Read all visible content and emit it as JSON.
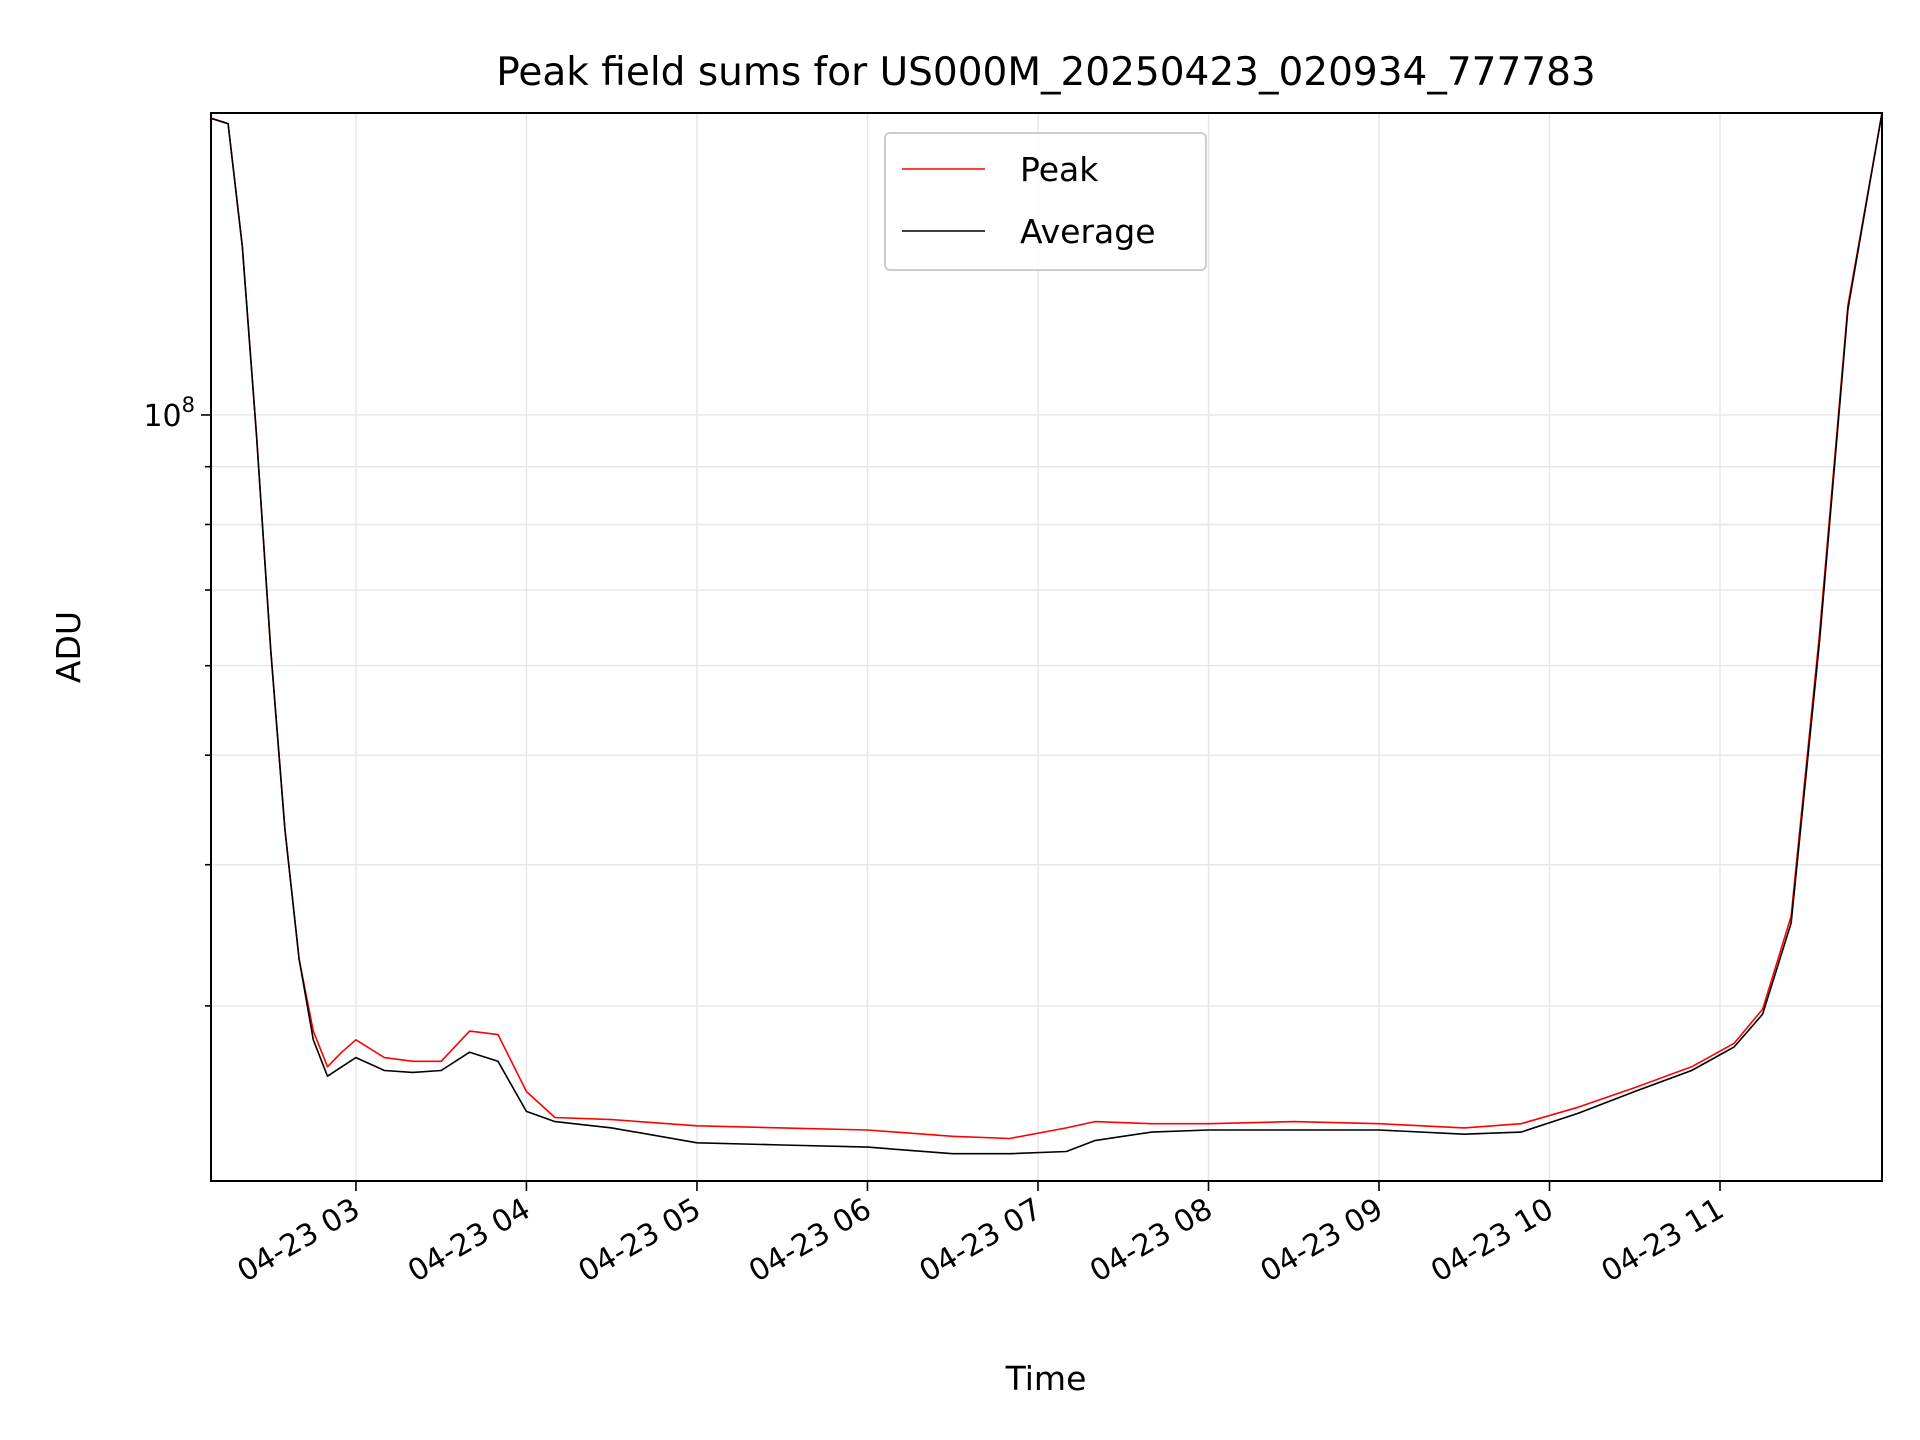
{
  "chart_data": {
    "type": "line",
    "title": "Peak field sums for US000M_20250423_020934_777783",
    "xlabel": "Time",
    "ylabel": "ADU",
    "xlim": [
      "04-23 02:09",
      "04-23 11:57"
    ],
    "ylim": [
      21000000,
      185000000
    ],
    "yscale": "log",
    "grid": true,
    "grid_minor": true,
    "legend_position": "top-center",
    "x_tick_labels": [
      "04-23 03",
      "04-23 04",
      "04-23 05",
      "04-23 06",
      "04-23 07",
      "04-23 08",
      "04-23 09",
      "04-23 10",
      "04-23 11"
    ],
    "x_tick_times": [
      "04-23 03:00",
      "04-23 04:00",
      "04-23 05:00",
      "04-23 06:00",
      "04-23 07:00",
      "04-23 08:00",
      "04-23 09:00",
      "04-23 10:00",
      "04-23 11:00"
    ],
    "y_tick_label": {
      "base": "10",
      "exponent": "8",
      "value": 100000000
    },
    "y_minor_ticks": [
      30000000,
      40000000,
      50000000,
      60000000,
      70000000,
      80000000,
      90000000
    ],
    "series": [
      {
        "name": "Peak",
        "color": "#ff0000",
        "x": [
          "04-23 02:09",
          "04-23 02:15",
          "04-23 02:20",
          "04-23 02:25",
          "04-23 02:30",
          "04-23 02:35",
          "04-23 02:40",
          "04-23 02:45",
          "04-23 02:50",
          "04-23 02:55",
          "04-23 03:00",
          "04-23 03:10",
          "04-23 03:20",
          "04-23 03:30",
          "04-23 03:40",
          "04-23 03:50",
          "04-23 04:00",
          "04-23 04:10",
          "04-23 04:30",
          "04-23 05:00",
          "04-23 05:30",
          "04-23 06:00",
          "04-23 06:30",
          "04-23 06:50",
          "04-23 07:10",
          "04-23 07:20",
          "04-23 07:40",
          "04-23 08:00",
          "04-23 08:30",
          "04-23 09:00",
          "04-23 09:30",
          "04-23 09:50",
          "04-23 10:10",
          "04-23 10:30",
          "04-23 10:50",
          "04-23 11:05",
          "04-23 11:15",
          "04-23 11:25",
          "04-23 11:35",
          "04-23 11:45",
          "04-23 11:57"
        ],
        "y": [
          183000000,
          181000000,
          141000000,
          96000000,
          62000000,
          43000000,
          33000000,
          28500000,
          26500000,
          27300000,
          28000000,
          27000000,
          26800000,
          26800000,
          28500000,
          28300000,
          25200000,
          23900000,
          23800000,
          23500000,
          23400000,
          23300000,
          23000000,
          22900000,
          23400000,
          23700000,
          23600000,
          23600000,
          23700000,
          23600000,
          23400000,
          23600000,
          24400000,
          25400000,
          26500000,
          27800000,
          29800000,
          36000000,
          64000000,
          125000000,
          185000000
        ]
      },
      {
        "name": "Average",
        "color": "#000000",
        "x": [
          "04-23 02:09",
          "04-23 02:15",
          "04-23 02:20",
          "04-23 02:25",
          "04-23 02:30",
          "04-23 02:35",
          "04-23 02:40",
          "04-23 02:45",
          "04-23 02:50",
          "04-23 02:55",
          "04-23 03:00",
          "04-23 03:10",
          "04-23 03:20",
          "04-23 03:30",
          "04-23 03:40",
          "04-23 03:50",
          "04-23 04:00",
          "04-23 04:10",
          "04-23 04:30",
          "04-23 05:00",
          "04-23 05:30",
          "04-23 06:00",
          "04-23 06:30",
          "04-23 06:50",
          "04-23 07:10",
          "04-23 07:20",
          "04-23 07:40",
          "04-23 08:00",
          "04-23 08:30",
          "04-23 09:00",
          "04-23 09:30",
          "04-23 09:50",
          "04-23 10:10",
          "04-23 10:30",
          "04-23 10:50",
          "04-23 11:05",
          "04-23 11:15",
          "04-23 11:25",
          "04-23 11:35",
          "04-23 11:45",
          "04-23 11:57"
        ],
        "y": [
          183000000,
          181000000,
          141000000,
          96000000,
          62000000,
          43000000,
          33000000,
          28000000,
          26000000,
          26500000,
          27000000,
          26300000,
          26200000,
          26300000,
          27300000,
          26800000,
          24200000,
          23700000,
          23400000,
          22700000,
          22600000,
          22500000,
          22200000,
          22200000,
          22300000,
          22800000,
          23200000,
          23300000,
          23300000,
          23300000,
          23100000,
          23200000,
          24100000,
          25200000,
          26300000,
          27600000,
          29500000,
          35500000,
          63000000,
          124000000,
          185000000
        ]
      }
    ]
  }
}
